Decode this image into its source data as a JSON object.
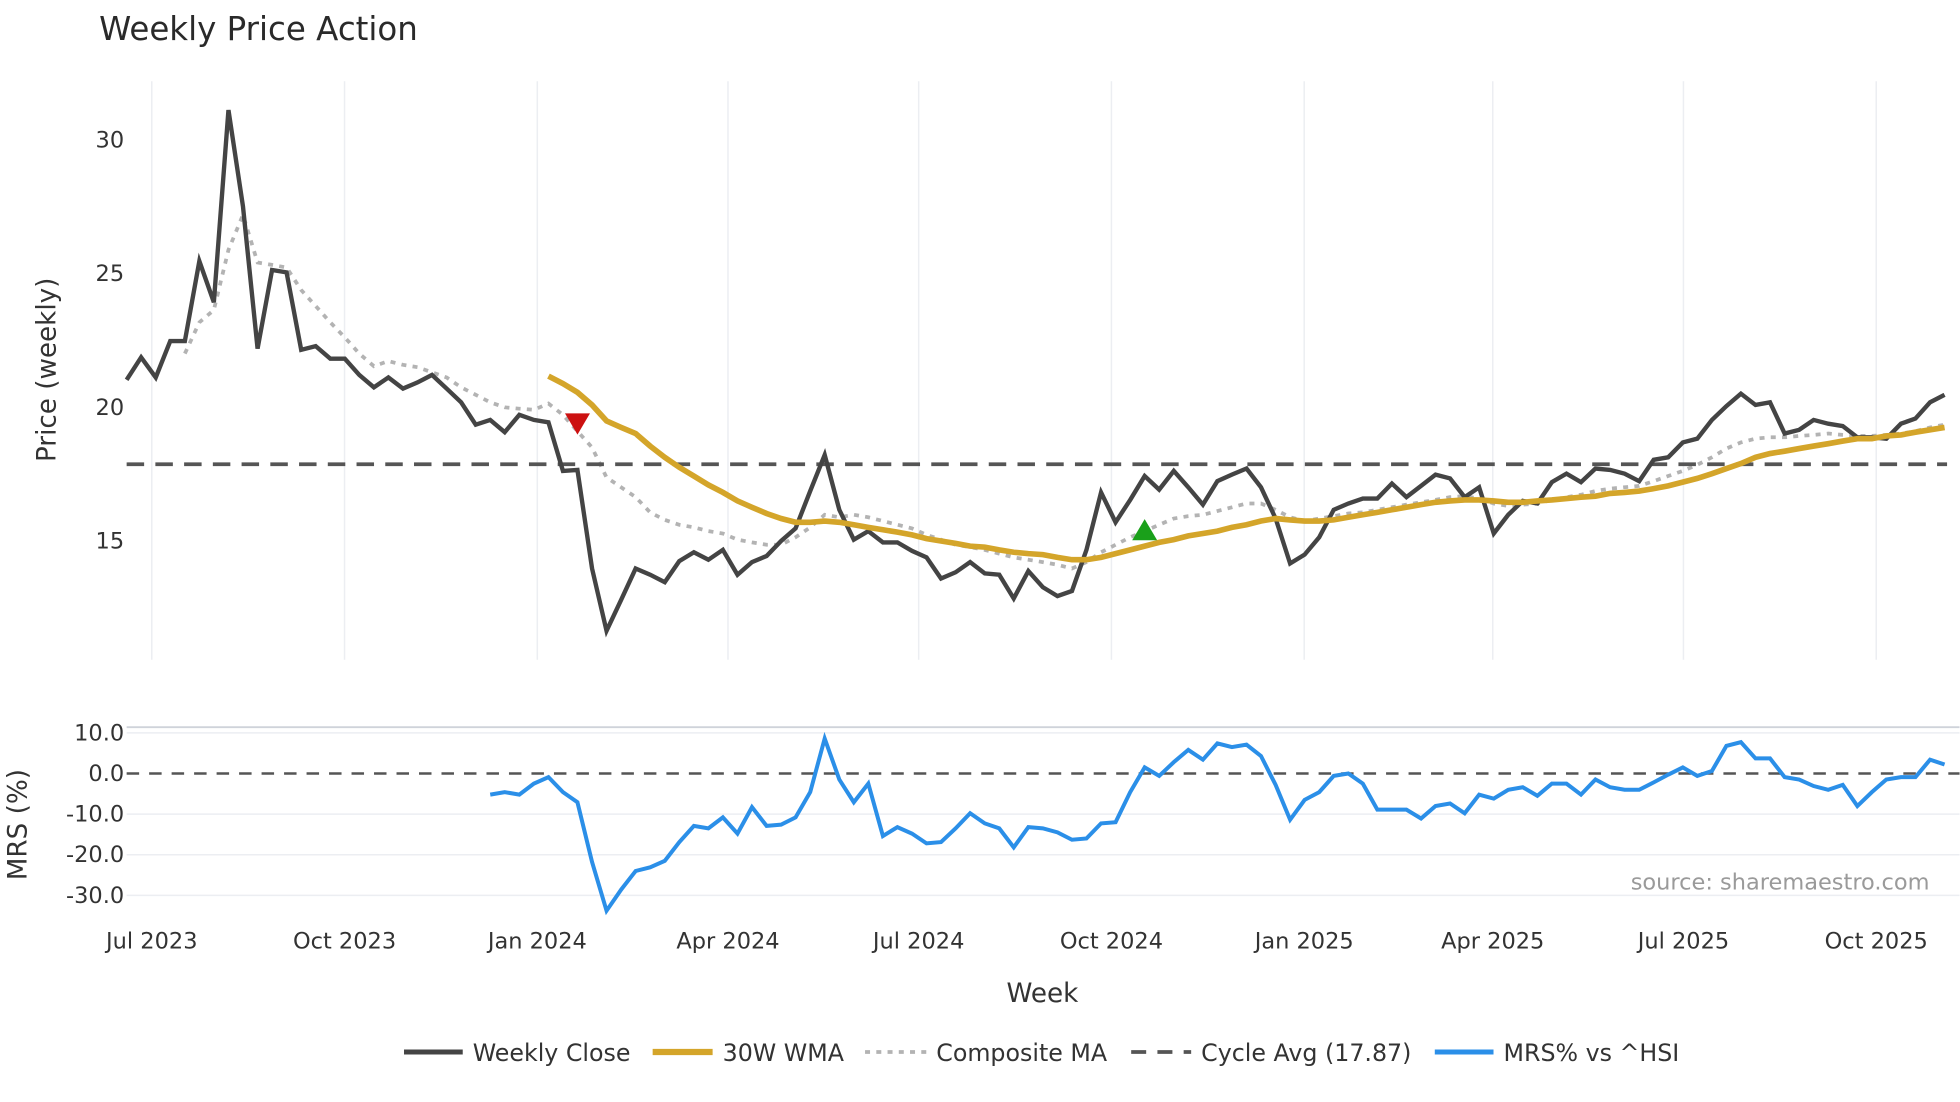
{
  "chart_data": {
    "type": "line",
    "title": "Weekly Price Action",
    "xlabel": "Week",
    "ylabel": "Price (weekly)",
    "ylabel_lower": "MRS (%)",
    "source": "source: sharemaestro.com",
    "start_date": "2023-06-19",
    "step_days": 7,
    "x_ticks": [
      {
        "date": "2023-07-01",
        "label": "Jul 2023"
      },
      {
        "date": "2023-10-01",
        "label": "Oct 2023"
      },
      {
        "date": "2024-01-01",
        "label": "Jan 2024"
      },
      {
        "date": "2024-04-01",
        "label": "Apr 2024"
      },
      {
        "date": "2024-07-01",
        "label": "Jul 2024"
      },
      {
        "date": "2024-10-01",
        "label": "Oct 2024"
      },
      {
        "date": "2025-01-01",
        "label": "Jan 2025"
      },
      {
        "date": "2025-04-01",
        "label": "Apr 2025"
      },
      {
        "date": "2025-07-01",
        "label": "Jul 2025"
      },
      {
        "date": "2025-10-01",
        "label": "Oct 2025"
      }
    ],
    "price_ylim": [
      10.56,
      32.2
    ],
    "price_ticks": [
      {
        "value": 15,
        "label": "15"
      },
      {
        "value": 20,
        "label": "20"
      },
      {
        "value": 25,
        "label": "25"
      },
      {
        "value": 30,
        "label": "30"
      }
    ],
    "mrs_ylim": [
      -37.2,
      11.4
    ],
    "mrs_ticks": [
      {
        "value": 10,
        "label": "10.0"
      },
      {
        "value": 0,
        "label": "0.0"
      },
      {
        "value": -10,
        "label": "-10.0"
      },
      {
        "value": -20,
        "label": "-20.0"
      },
      {
        "value": -30,
        "label": "-30.0"
      }
    ],
    "series": [
      {
        "name": "Weekly Close",
        "color": "#444444",
        "start_index": 0,
        "values": [
          21.03,
          21.87,
          21.12,
          22.48,
          22.48,
          25.47,
          23.93,
          31.12,
          27.52,
          22.2,
          25.14,
          25.05,
          22.15,
          22.29,
          21.82,
          21.82,
          21.21,
          20.75,
          21.12,
          20.7,
          20.93,
          21.21,
          20.7,
          20.19,
          19.35,
          19.53,
          19.07,
          19.72,
          19.53,
          19.44,
          17.62,
          17.66,
          13.97,
          11.64,
          12.8,
          13.97,
          13.74,
          13.46,
          14.25,
          14.58,
          14.3,
          14.67,
          13.74,
          14.21,
          14.44,
          15.0,
          15.47,
          16.87,
          18.22,
          16.17,
          15.05,
          15.37,
          14.95,
          14.95,
          14.63,
          14.39,
          13.6,
          13.83,
          14.21,
          13.79,
          13.74,
          12.85,
          13.88,
          13.27,
          12.94,
          13.13,
          14.67,
          16.82,
          15.7,
          16.54,
          17.43,
          16.92,
          17.62,
          17.01,
          16.36,
          17.24,
          17.48,
          17.71,
          17.01,
          15.84,
          14.16,
          14.49,
          15.14,
          16.17,
          16.4,
          16.59,
          16.59,
          17.15,
          16.64,
          17.06,
          17.48,
          17.34,
          16.64,
          17.01,
          15.28,
          15.98,
          16.5,
          16.4,
          17.2,
          17.52,
          17.2,
          17.71,
          17.66,
          17.52,
          17.24,
          18.04,
          18.13,
          18.69,
          18.83,
          19.53,
          20.05,
          20.51,
          20.09,
          20.19,
          19.02,
          19.16,
          19.53,
          19.39,
          19.3,
          18.88,
          18.88,
          18.83,
          19.39,
          19.58,
          20.19,
          20.47
        ]
      },
      {
        "name": "30W WMA",
        "color": "#D4A52A",
        "start_index": 29,
        "values": [
          21.17,
          20.89,
          20.56,
          20.09,
          19.49,
          19.25,
          19.02,
          18.55,
          18.13,
          17.76,
          17.43,
          17.1,
          16.82,
          16.5,
          16.26,
          16.03,
          15.84,
          15.7,
          15.7,
          15.75,
          15.7,
          15.61,
          15.51,
          15.42,
          15.33,
          15.23,
          15.09,
          15.0,
          14.91,
          14.81,
          14.77,
          14.67,
          14.58,
          14.53,
          14.49,
          14.39,
          14.3,
          14.3,
          14.39,
          14.53,
          14.67,
          14.81,
          14.95,
          15.05,
          15.19,
          15.28,
          15.37,
          15.51,
          15.61,
          15.75,
          15.84,
          15.79,
          15.75,
          15.75,
          15.79,
          15.89,
          15.98,
          16.07,
          16.17,
          16.26,
          16.36,
          16.45,
          16.5,
          16.54,
          16.54,
          16.5,
          16.45,
          16.45,
          16.5,
          16.54,
          16.59,
          16.64,
          16.68,
          16.78,
          16.82,
          16.87,
          16.96,
          17.06,
          17.2,
          17.34,
          17.52,
          17.71,
          17.9,
          18.13,
          18.27,
          18.36,
          18.46,
          18.55,
          18.64,
          18.74,
          18.83,
          18.83,
          18.93,
          18.97,
          19.07,
          19.16,
          19.25
        ]
      },
      {
        "name": "Composite MA",
        "color": "#B3B3B3",
        "start_index": 4,
        "values": [
          22.01,
          23.18,
          23.64,
          25.89,
          27.2,
          25.42,
          25.33,
          25.23,
          24.39,
          23.79,
          23.18,
          22.62,
          22.01,
          21.54,
          21.73,
          21.59,
          21.5,
          21.31,
          21.12,
          20.75,
          20.47,
          20.19,
          20.0,
          19.95,
          19.91,
          20.14,
          19.72,
          19.11,
          18.5,
          17.38,
          17.01,
          16.64,
          16.07,
          15.79,
          15.61,
          15.51,
          15.37,
          15.28,
          15.05,
          14.95,
          14.86,
          14.86,
          15.14,
          15.51,
          15.98,
          15.89,
          15.98,
          15.89,
          15.75,
          15.61,
          15.47,
          15.23,
          15.05,
          14.86,
          14.77,
          14.67,
          14.53,
          14.39,
          14.3,
          14.21,
          14.11,
          13.97,
          14.21,
          14.58,
          14.86,
          15.14,
          15.37,
          15.61,
          15.84,
          15.93,
          15.98,
          16.12,
          16.26,
          16.4,
          16.4,
          16.17,
          15.89,
          15.75,
          15.84,
          15.93,
          16.03,
          16.07,
          16.17,
          16.26,
          16.36,
          16.45,
          16.54,
          16.64,
          16.68,
          16.59,
          16.4,
          16.31,
          16.36,
          16.4,
          16.54,
          16.64,
          16.73,
          16.87,
          16.96,
          17.01,
          17.06,
          17.24,
          17.43,
          17.62,
          17.85,
          18.13,
          18.46,
          18.69,
          18.83,
          18.88,
          18.88,
          18.93,
          18.97,
          19.02,
          18.97,
          18.93,
          18.93,
          18.97,
          19.02,
          19.11,
          19.25,
          19.35
        ]
      },
      {
        "name": "Cycle Avg (17.87)",
        "color": "#555555",
        "value": 17.87
      },
      {
        "name": "MRS% vs ^HSI",
        "color": "#2B8FE8",
        "start_index": 25,
        "values": [
          -5.2,
          -4.6,
          -5.2,
          -2.5,
          -0.9,
          -4.6,
          -7.1,
          -21.8,
          -33.8,
          -28.6,
          -24.0,
          -23.1,
          -21.5,
          -16.9,
          -12.9,
          -13.5,
          -10.8,
          -14.8,
          -8.3,
          -12.9,
          -12.6,
          -10.8,
          -4.6,
          8.6,
          -1.5,
          -7.1,
          -2.5,
          -15.4,
          -13.2,
          -14.8,
          -17.2,
          -16.9,
          -13.5,
          -9.8,
          -12.3,
          -13.5,
          -18.2,
          -13.2,
          -13.5,
          -14.5,
          -16.3,
          -16.0,
          -12.3,
          -12.0,
          -4.6,
          1.5,
          -0.6,
          2.8,
          5.8,
          3.4,
          7.4,
          6.5,
          7.1,
          4.3,
          -2.8,
          -11.4,
          -6.5,
          -4.6,
          -0.6,
          0.0,
          -2.5,
          -8.9,
          -8.9,
          -8.9,
          -11.1,
          -8.0,
          -7.4,
          -9.8,
          -5.2,
          -6.2,
          -4.0,
          -3.4,
          -5.5,
          -2.5,
          -2.5,
          -5.2,
          -1.5,
          -3.4,
          -4.0,
          -4.0,
          -2.2,
          -0.3,
          1.5,
          -0.6,
          0.6,
          6.8,
          7.7,
          3.7,
          3.7,
          -0.9,
          -1.5,
          -3.1,
          -4.0,
          -2.8,
          -8.0,
          -4.6,
          -1.5,
          -0.9,
          -0.9,
          3.4,
          2.2
        ]
      }
    ],
    "markers": [
      {
        "type": "sell",
        "shape": "triangle-down",
        "color": "#CC1111",
        "index": 31,
        "value": 19.4
      },
      {
        "type": "buy",
        "shape": "triangle-up",
        "color": "#1AA01A",
        "index": 70,
        "value": 15.4
      }
    ],
    "legend_position": "bottom-center"
  }
}
